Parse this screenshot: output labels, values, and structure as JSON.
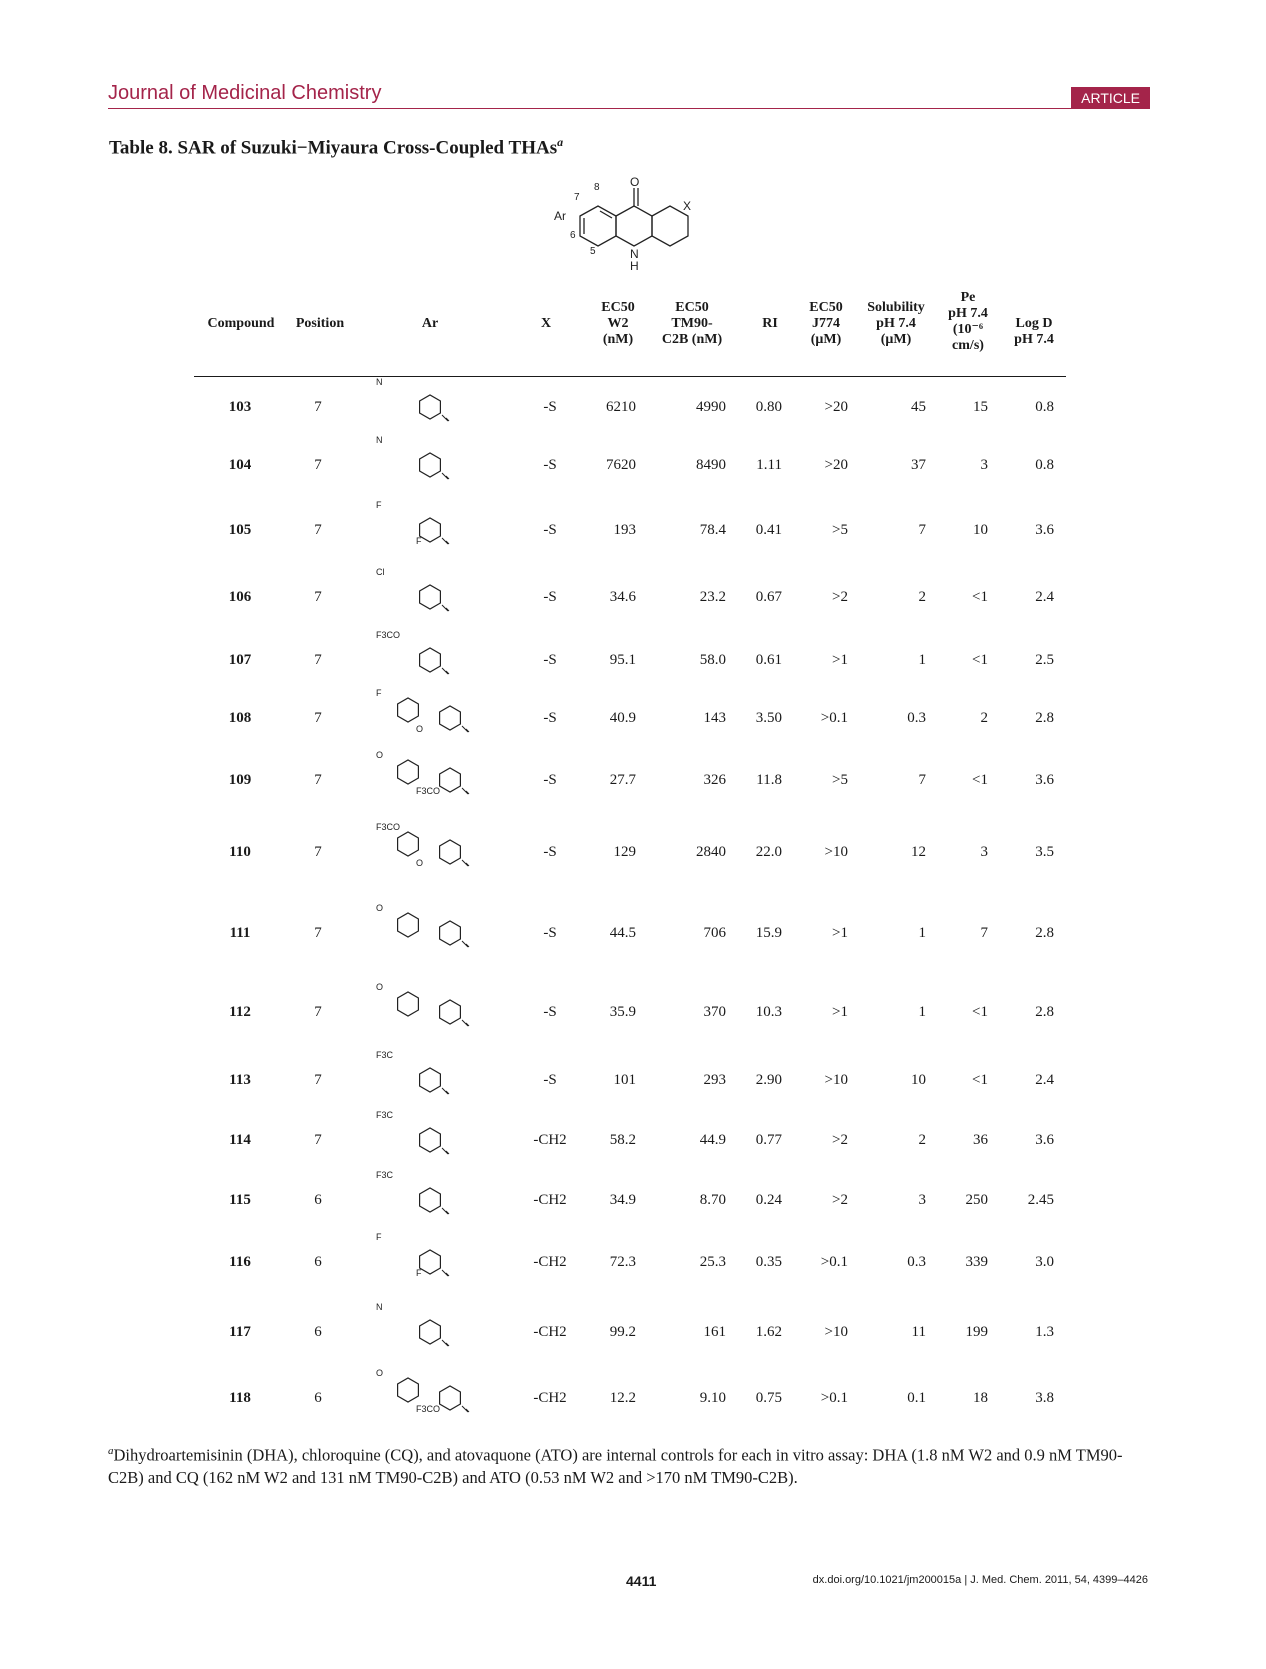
{
  "header": {
    "journal": "Journal of Medicinal Chemistry",
    "badge": "ARTICLE"
  },
  "table": {
    "title": "Table 8.  SAR of Suzuki−Miyaura Cross-Coupled THAs",
    "title_note": "a",
    "core_labels": {
      "oxo": "O",
      "x": "X",
      "ar": "Ar",
      "nh": "N",
      "h": "H",
      "p8": "8",
      "p7": "7",
      "p6": "6",
      "p5": "5"
    },
    "columns": {
      "compound": "Compound",
      "position": "Position",
      "ar": "Ar",
      "x": "X",
      "w2": [
        "EC50",
        "W2",
        "(nM)"
      ],
      "tm": [
        "EC50",
        "TM90-",
        "C2B (nM)"
      ],
      "ri": "RI",
      "j774": [
        "EC50",
        "J774",
        "(μM)"
      ],
      "sol": [
        "Solubility",
        "pH 7.4",
        "(μM)"
      ],
      "pe": [
        "Pe",
        "pH 7.4",
        "(10⁻⁶",
        "cm/s)"
      ],
      "logd": [
        "Log D",
        "pH 7.4"
      ]
    },
    "rows": [
      {
        "compound": "103",
        "position": "7",
        "ar_icon": "4-pyridyl-icon",
        "ar_labels": [
          "N"
        ],
        "x": "-S",
        "w2": "6210",
        "tm": "4990",
        "ri": "0.80",
        "j774": ">20",
        "sol": "45",
        "pe": "15",
        "logd": "0.8"
      },
      {
        "compound": "104",
        "position": "7",
        "ar_icon": "3-pyridyl-icon",
        "ar_labels": [
          "N"
        ],
        "x": "-S",
        "w2": "7620",
        "tm": "8490",
        "ri": "1.11",
        "j774": ">20",
        "sol": "37",
        "pe": "3",
        "logd": "0.8"
      },
      {
        "compound": "105",
        "position": "7",
        "ar_icon": "difluorophenyl-icon",
        "ar_labels": [
          "F",
          "F"
        ],
        "x": "-S",
        "w2": "193",
        "tm": "78.4",
        "ri": "0.41",
        "j774": ">5",
        "sol": "7",
        "pe": "10",
        "logd": "3.6"
      },
      {
        "compound": "106",
        "position": "7",
        "ar_icon": "chloro-methylphenyl-icon",
        "ar_labels": [
          "Cl"
        ],
        "x": "-S",
        "w2": "34.6",
        "tm": "23.2",
        "ri": "0.67",
        "j774": ">2",
        "sol": "2",
        "pe": "<1",
        "logd": "2.4"
      },
      {
        "compound": "107",
        "position": "7",
        "ar_icon": "trifluoromethoxyphenyl-icon",
        "ar_labels": [
          "F3CO"
        ],
        "x": "-S",
        "w2": "95.1",
        "tm": "58.0",
        "ri": "0.61",
        "j774": ">1",
        "sol": "1",
        "pe": "<1",
        "logd": "2.5"
      },
      {
        "compound": "108",
        "position": "7",
        "ar_icon": "fluorophenoxyphenyl-icon",
        "ar_labels": [
          "F",
          "O"
        ],
        "x": "-S",
        "w2": "40.9",
        "tm": "143",
        "ri": "3.50",
        "j774": ">0.1",
        "sol": "0.3",
        "pe": "2",
        "logd": "2.8"
      },
      {
        "compound": "109",
        "position": "7",
        "ar_icon": "trifluoromethoxyphenoxy-methylphenyl-icon",
        "ar_labels": [
          "O",
          "F3CO"
        ],
        "x": "-S",
        "w2": "27.7",
        "tm": "326",
        "ri": "11.8",
        "j774": ">5",
        "sol": "7",
        "pe": "<1",
        "logd": "3.6"
      },
      {
        "compound": "110",
        "position": "7",
        "ar_icon": "trifluoromethoxyphenoxymethylphenyl-icon",
        "ar_labels": [
          "F3CO",
          "O"
        ],
        "x": "-S",
        "w2": "129",
        "tm": "2840",
        "ri": "22.0",
        "j774": ">10",
        "sol": "12",
        "pe": "3",
        "logd": "3.5"
      },
      {
        "compound": "111",
        "position": "7",
        "ar_icon": "phenoxymethylphenyl-icon",
        "ar_labels": [
          "O"
        ],
        "x": "-S",
        "w2": "44.5",
        "tm": "706",
        "ri": "15.9",
        "j774": ">1",
        "sol": "1",
        "pe": "7",
        "logd": "2.8"
      },
      {
        "compound": "112",
        "position": "7",
        "ar_icon": "benzyloxyphenyl-icon",
        "ar_labels": [
          "O"
        ],
        "x": "-S",
        "w2": "35.9",
        "tm": "370",
        "ri": "10.3",
        "j774": ">1",
        "sol": "1",
        "pe": "<1",
        "logd": "2.8"
      },
      {
        "compound": "113",
        "position": "7",
        "ar_icon": "trifluoromethylphenyl-icon",
        "ar_labels": [
          "F3C"
        ],
        "x": "-S",
        "w2": "101",
        "tm": "293",
        "ri": "2.90",
        "j774": ">10",
        "sol": "10",
        "pe": "<1",
        "logd": "2.4"
      },
      {
        "compound": "114",
        "position": "7",
        "ar_icon": "trifluoromethylphenyl-icon",
        "ar_labels": [
          "F3C"
        ],
        "x": "-CH2",
        "w2": "58.2",
        "tm": "44.9",
        "ri": "0.77",
        "j774": ">2",
        "sol": "2",
        "pe": "36",
        "logd": "3.6"
      },
      {
        "compound": "115",
        "position": "6",
        "ar_icon": "trifluoromethylphenyl-icon",
        "ar_labels": [
          "F3C"
        ],
        "x": "-CH2",
        "w2": "34.9",
        "tm": "8.70",
        "ri": "0.24",
        "j774": ">2",
        "sol": "3",
        "pe": "250",
        "logd": "2.45"
      },
      {
        "compound": "116",
        "position": "6",
        "ar_icon": "difluorophenyl-icon",
        "ar_labels": [
          "F",
          "F"
        ],
        "x": "-CH2",
        "w2": "72.3",
        "tm": "25.3",
        "ri": "0.35",
        "j774": ">0.1",
        "sol": "0.3",
        "pe": "339",
        "logd": "3.0"
      },
      {
        "compound": "117",
        "position": "6",
        "ar_icon": "dimethylaminophenyl-icon",
        "ar_labels": [
          "N"
        ],
        "x": "-CH2",
        "w2": "99.2",
        "tm": "161",
        "ri": "1.62",
        "j774": ">10",
        "sol": "11",
        "pe": "199",
        "logd": "1.3"
      },
      {
        "compound": "118",
        "position": "6",
        "ar_icon": "trifluoromethoxyphenoxyphenyl-icon",
        "ar_labels": [
          "O",
          "F3CO"
        ],
        "x": "-CH2",
        "w2": "12.2",
        "tm": "9.10",
        "ri": "0.75",
        "j774": ">0.1",
        "sol": "0.1",
        "pe": "18",
        "logd": "3.8"
      }
    ]
  },
  "footnote": {
    "mark": "a",
    "text": "Dihydroartemisinin (DHA), chloroquine (CQ), and atovaquone (ATO) are internal controls for each in vitro assay: DHA (1.8 nM W2 and 0.9 nM TM90-C2B) and CQ (162 nM W2 and 131 nM TM90-C2B) and ATO (0.53 nM W2 and >170 nM TM90-C2B)."
  },
  "footer": {
    "page": "4411",
    "citation": "dx.doi.org/10.1021/jm200015a | J. Med. Chem. 2011, 54, 4399–4426"
  }
}
